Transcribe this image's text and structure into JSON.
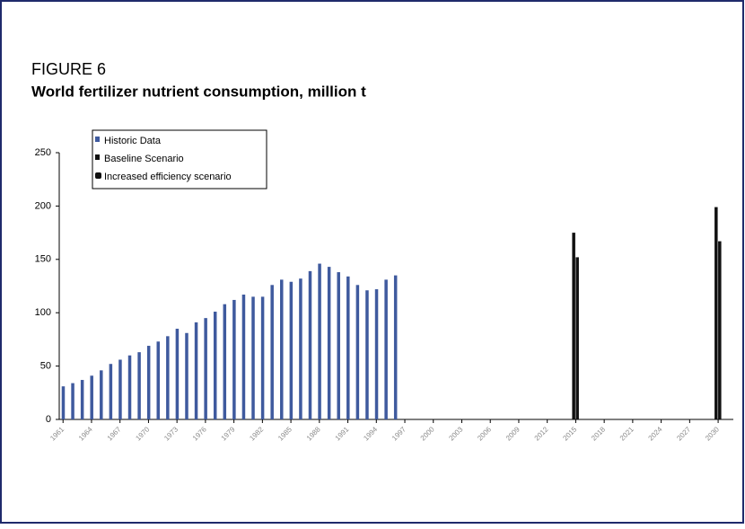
{
  "chart_data": {
    "type": "bar",
    "title": "FIGURE 6",
    "subtitle": "World fertilizer nutrient consumption, million t",
    "series": [
      {
        "name": "Historic Data",
        "color": "#3f5a9e",
        "x": [
          1961,
          1962,
          1963,
          1964,
          1965,
          1966,
          1967,
          1968,
          1969,
          1970,
          1971,
          1972,
          1973,
          1974,
          1975,
          1976,
          1977,
          1978,
          1979,
          1980,
          1981,
          1982,
          1983,
          1984,
          1985,
          1986,
          1987,
          1988,
          1989,
          1990,
          1991,
          1992,
          1993,
          1994,
          1995,
          1996
        ],
        "values": [
          31,
          34,
          37,
          41,
          46,
          52,
          56,
          60,
          63,
          69,
          73,
          78,
          85,
          81,
          91,
          95,
          101,
          108,
          112,
          117,
          115,
          115,
          126,
          131,
          129,
          132,
          139,
          146,
          143,
          138,
          134,
          126,
          121,
          122,
          131,
          135
        ]
      },
      {
        "name": "Baseline Scenario",
        "color": "#111111",
        "x": [
          2015,
          2030
        ],
        "values": [
          175,
          199
        ]
      },
      {
        "name": "Increased efficiency scenario",
        "color": "#111111",
        "x": [
          2015,
          2030
        ],
        "values": [
          152,
          167
        ]
      }
    ],
    "xlim": [
      1960.6,
      2031.6
    ],
    "xticks": [
      1961,
      1964,
      1967,
      1970,
      1973,
      1976,
      1979,
      1982,
      1985,
      1988,
      1991,
      1994,
      1997,
      2000,
      2003,
      2006,
      2009,
      2012,
      2015,
      2018,
      2021,
      2024,
      2027,
      2030
    ],
    "ylim": [
      0,
      250
    ],
    "yticks": [
      0,
      50,
      100,
      150,
      200,
      250
    ]
  }
}
